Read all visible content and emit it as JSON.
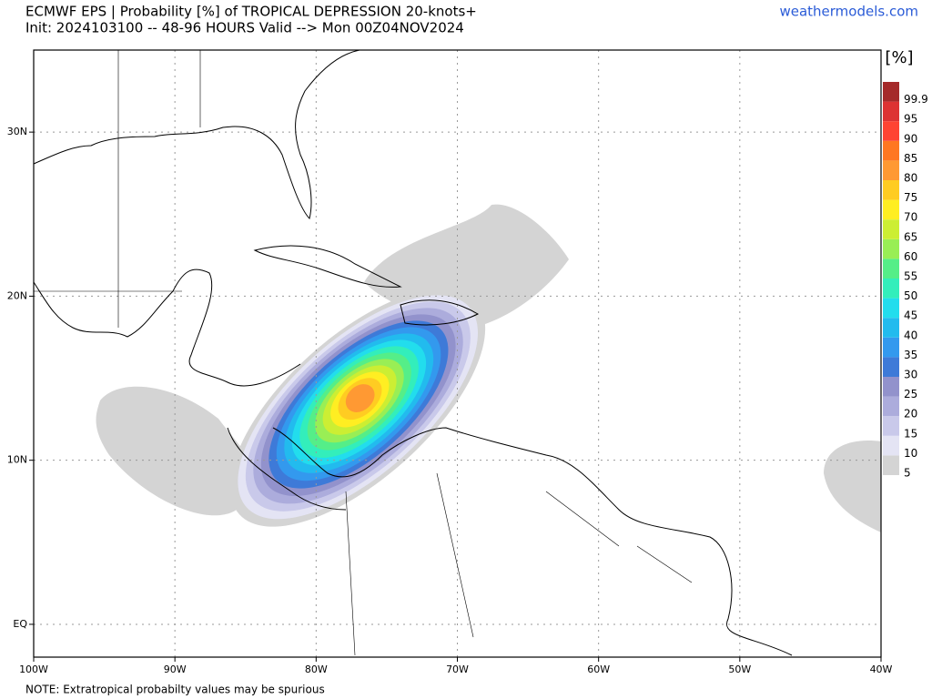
{
  "header": {
    "title": "ECMWF EPS | Probability [%] of TROPICAL DEPRESSION 20-knots+",
    "subtitle": "Init: 2024103100 -- 48-96 HOURS Valid --> Mon 00Z04NOV2024",
    "site": "weathermodels.com"
  },
  "map": {
    "lonlim": [
      -100,
      -40
    ],
    "latlim": [
      -2,
      35
    ],
    "lon_ticks": [
      {
        "value": -100,
        "label": "100W"
      },
      {
        "value": -90,
        "label": "90W"
      },
      {
        "value": -80,
        "label": "80W"
      },
      {
        "value": -70,
        "label": "70W"
      },
      {
        "value": -60,
        "label": "60W"
      },
      {
        "value": -50,
        "label": "50W"
      },
      {
        "value": -40,
        "label": "40W"
      }
    ],
    "lat_ticks": [
      {
        "value": 30,
        "label": "30N"
      },
      {
        "value": 20,
        "label": "20N"
      },
      {
        "value": 10,
        "label": "10N"
      },
      {
        "value": 0,
        "label": "EQ"
      }
    ],
    "grid": true
  },
  "colorbar": {
    "unit": "[%]",
    "levels": [
      5,
      10,
      15,
      20,
      25,
      30,
      35,
      40,
      45,
      50,
      55,
      60,
      65,
      70,
      75,
      80,
      85,
      90,
      95,
      99.9
    ],
    "colors": [
      "#d4d4d4",
      "#e4e4f4",
      "#c9c9ea",
      "#acacdc",
      "#9292cc",
      "#3e7ad8",
      "#3399ee",
      "#22bbee",
      "#22dded",
      "#33eebb",
      "#55ee88",
      "#99ee55",
      "#ccee33",
      "#ffee22",
      "#ffcc22",
      "#ff9933",
      "#ff7722",
      "#ff4433",
      "#dd3333",
      "#a52a2a"
    ]
  },
  "note": "NOTE: Extratropical probabilty values may be spurious"
}
